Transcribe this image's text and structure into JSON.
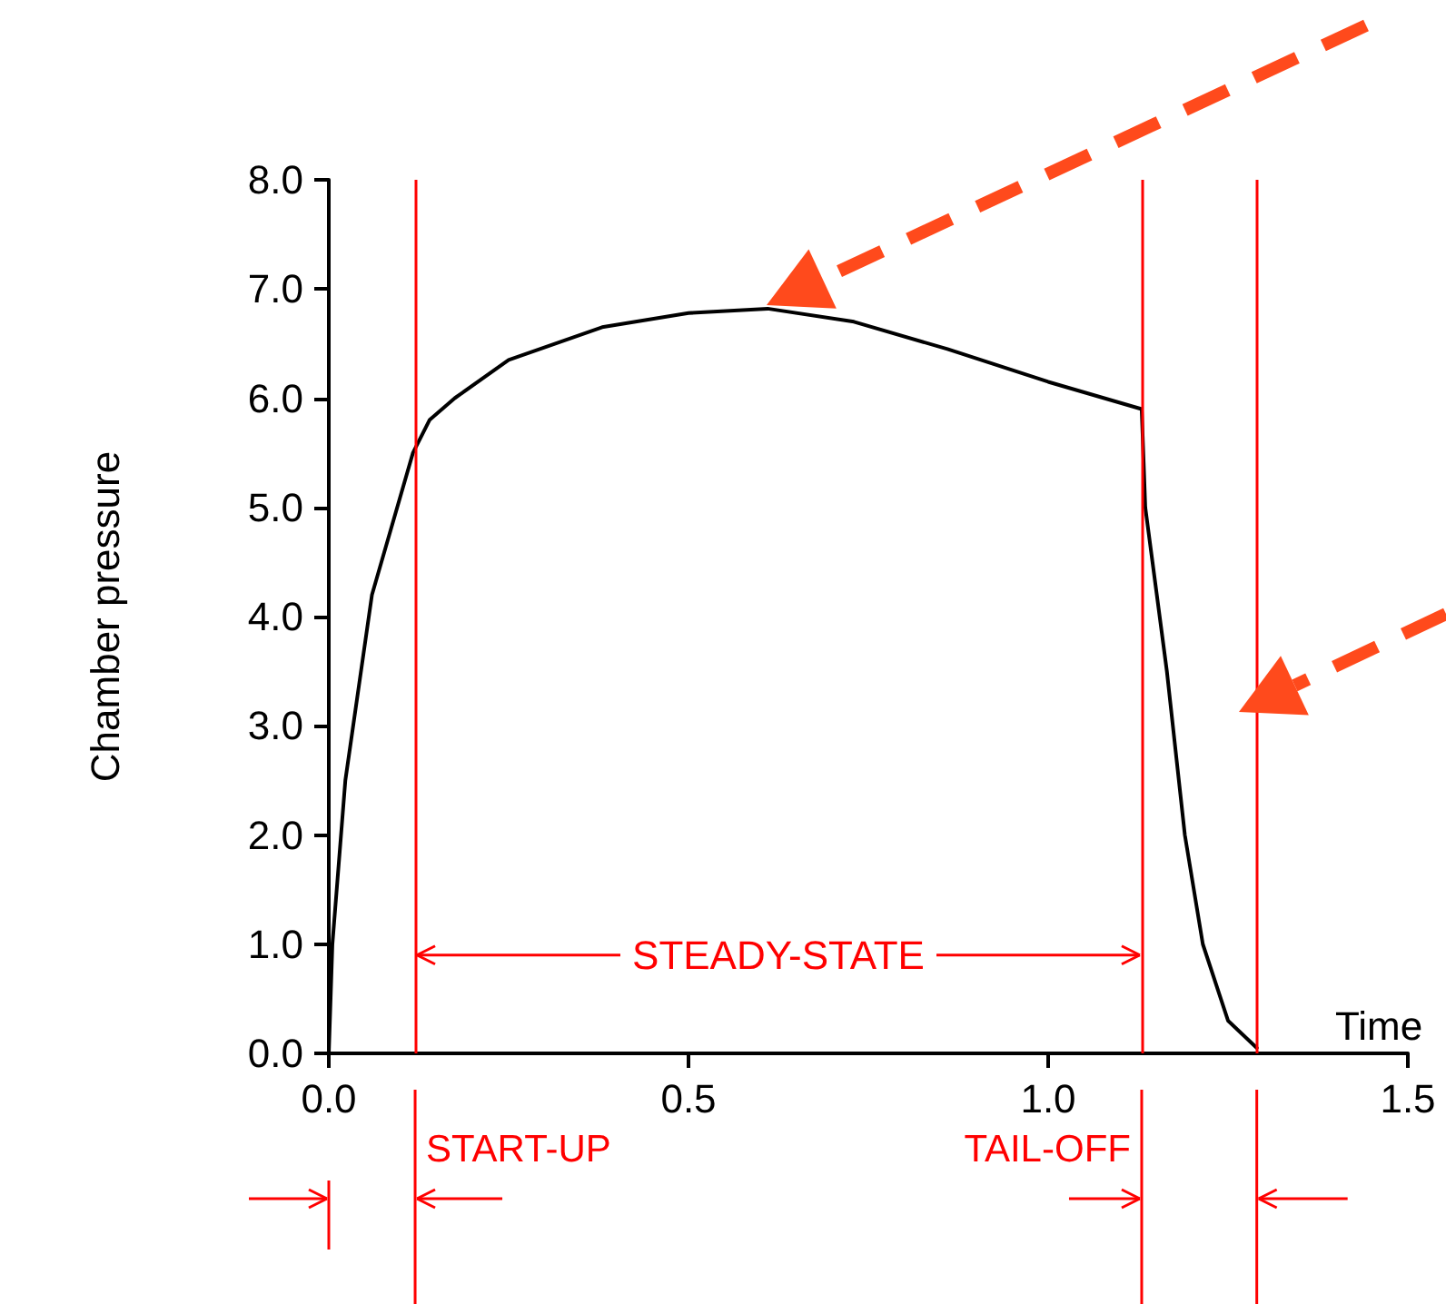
{
  "chart_data": {
    "type": "line",
    "xlabel": "Time",
    "ylabel": "Chamber pressure",
    "x": [
      0,
      0.005,
      0.023,
      0.06,
      0.117,
      0.14,
      0.175,
      0.25,
      0.38,
      0.5,
      0.61,
      0.73,
      0.86,
      1.0,
      1.13,
      1.135,
      1.165,
      1.19,
      1.215,
      1.25,
      1.29
    ],
    "series": [
      {
        "color": "#000000",
        "values": [
          0,
          1.0,
          2.5,
          4.2,
          5.5,
          5.8,
          6.0,
          6.35,
          6.65,
          6.78,
          6.82,
          6.7,
          6.45,
          6.15,
          5.9,
          5.0,
          3.5,
          2.0,
          1.0,
          0.3,
          0.05
        ]
      }
    ],
    "xlim": [
      0,
      1.5
    ],
    "ylim": [
      0,
      8
    ],
    "xticks": [
      {
        "value": 0,
        "label": "0.0"
      },
      {
        "value": 0.5,
        "label": "0.5"
      },
      {
        "value": 1,
        "label": "1.0"
      },
      {
        "value": 1.5,
        "label": "1.5"
      }
    ],
    "yticks": [
      {
        "value": 0,
        "label": "0.0"
      },
      {
        "value": 1,
        "label": "1.0"
      },
      {
        "value": 2,
        "label": "2.0"
      },
      {
        "value": 3,
        "label": "3.0"
      },
      {
        "value": 4,
        "label": "4.0"
      },
      {
        "value": 5,
        "label": "5.0"
      },
      {
        "value": 6,
        "label": "6.0"
      },
      {
        "value": 7,
        "label": "7.0"
      },
      {
        "value": 8,
        "label": "8.0"
      }
    ],
    "ref_lines": [
      {
        "axis": "x",
        "value": 0.12,
        "color": "#ff0000"
      },
      {
        "axis": "x",
        "value": 1.13,
        "color": "#ff0000"
      },
      {
        "axis": "x",
        "value": 1.29,
        "color": "#ff0000"
      }
    ],
    "annotations": [
      {
        "text": "STEADY-STATE",
        "x": 0.12,
        "y": 0.9
      },
      "START-UP",
      "TAIL-OFF"
    ],
    "grid": false,
    "marker": "none",
    "line_style": "solid"
  }
}
